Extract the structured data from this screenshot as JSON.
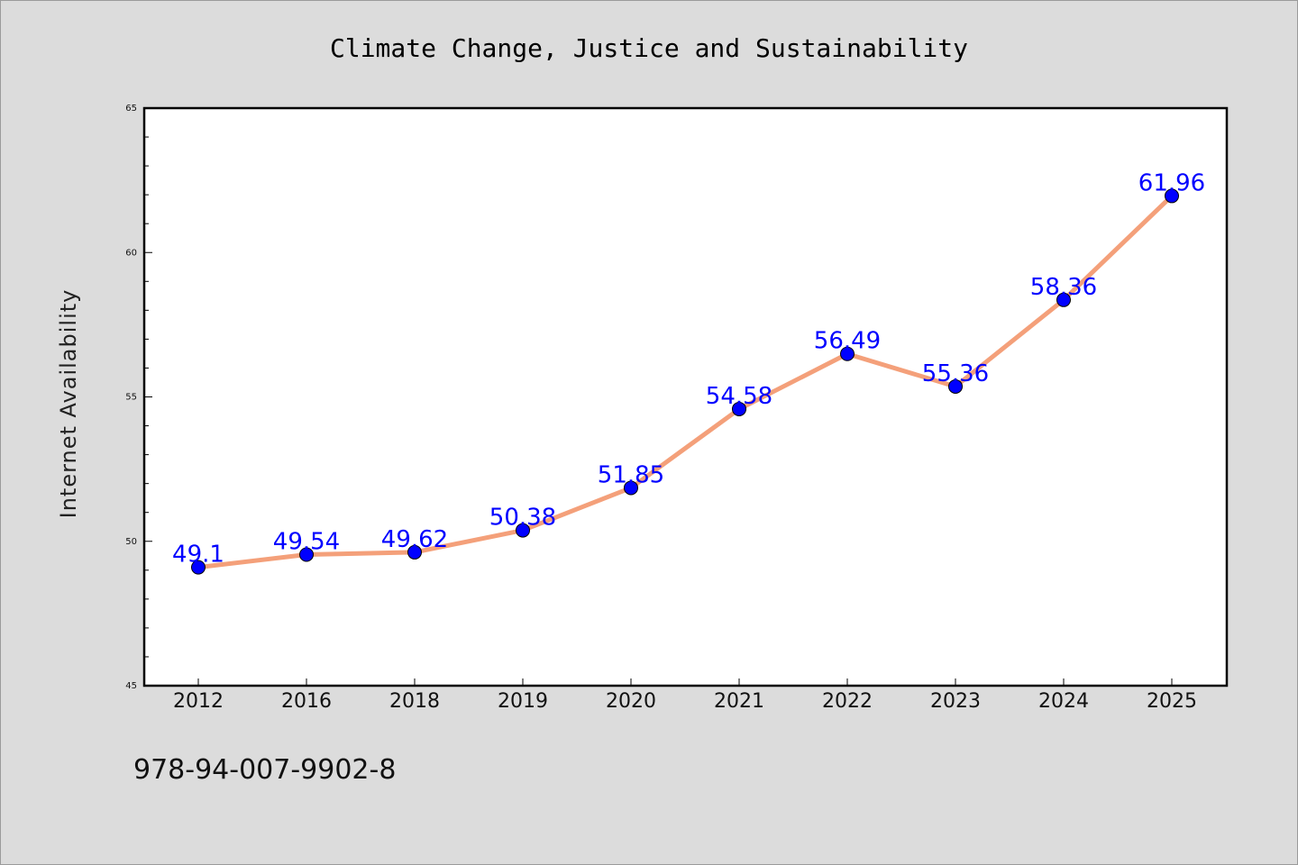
{
  "chart_data": {
    "type": "line",
    "title": "Climate Change, Justice and Sustainability",
    "xlabel": "",
    "ylabel": "Internet Availability",
    "categories": [
      "2012",
      "2016",
      "2018",
      "2019",
      "2020",
      "2021",
      "2022",
      "2023",
      "2024",
      "2025"
    ],
    "series": [
      {
        "values": [
          49.1,
          49.54,
          49.62,
          50.38,
          51.85,
          54.58,
          56.49,
          55.36,
          58.36,
          61.96
        ],
        "labels": [
          "49.1",
          "49.54",
          "49.62",
          "50.38",
          "51.85",
          "54.58",
          "56.49",
          "55.36",
          "58.36",
          "61.96"
        ],
        "line_color": "#f4a07a",
        "marker_color": "#0000ff"
      }
    ],
    "ylim": [
      45,
      65
    ],
    "yticks": [
      "45",
      "50",
      "55",
      "60",
      "65"
    ],
    "grid": false,
    "legend": "none"
  },
  "footer": {
    "isbn": "978-94-007-9902-8"
  }
}
